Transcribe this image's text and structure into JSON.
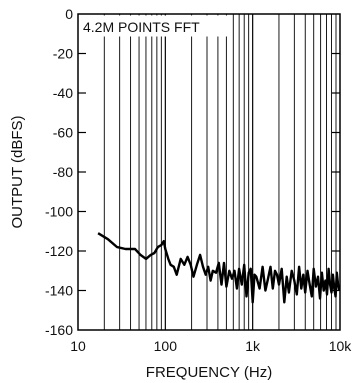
{
  "chart_data": {
    "type": "line",
    "title": "",
    "annotation": "4.2M POINTS FFT",
    "xlabel": "FREQUENCY (Hz)",
    "ylabel": "OUTPUT (dBFS)",
    "xscale": "log",
    "xlim": [
      10,
      10000
    ],
    "ylim": [
      -160,
      0
    ],
    "xticks": [
      10,
      100,
      1000,
      10000
    ],
    "xtick_labels": [
      "10",
      "100",
      "1k",
      "10k"
    ],
    "yticks": [
      0,
      -20,
      -40,
      -60,
      -80,
      -100,
      -120,
      -140,
      -160
    ],
    "ytick_labels": [
      "0",
      "-20",
      "-40",
      "-60",
      "-80",
      "-100",
      "-120",
      "-140",
      "-160"
    ],
    "grid": "vertical",
    "series": [
      {
        "line_color": "#000000",
        "x": [
          17,
          22,
          28,
          35,
          45,
          52,
          60,
          68,
          75,
          82,
          90,
          96,
          100,
          108,
          115,
          125,
          135,
          150,
          165,
          180,
          195,
          210,
          230,
          250,
          270,
          290,
          310,
          330,
          350,
          380,
          410,
          440,
          470,
          500,
          540,
          580,
          620,
          660,
          700,
          750,
          800,
          850,
          900,
          950,
          1000,
          1050,
          1100,
          1200,
          1300,
          1400,
          1500,
          1600,
          1700,
          1800,
          1900,
          2000,
          2150,
          2300,
          2450,
          2600,
          2800,
          3000,
          3200,
          3400,
          3600,
          3800,
          4000,
          4250,
          4500,
          4750,
          5000,
          5300,
          5600,
          5900,
          6200,
          6500,
          6800,
          7100,
          7400,
          7700,
          8000,
          8300,
          8600,
          8900,
          9200,
          9500,
          9800
        ],
        "y": [
          -111,
          -114,
          -118,
          -119,
          -119,
          -122,
          -124,
          -122,
          -121,
          -118,
          -117,
          -115,
          -119,
          -124,
          -127,
          -128,
          -132,
          -124,
          -127,
          -123,
          -127,
          -133,
          -127,
          -122,
          -128,
          -132,
          -128,
          -135,
          -130,
          -131,
          -126,
          -137,
          -126,
          -138,
          -130,
          -134,
          -130,
          -139,
          -129,
          -137,
          -127,
          -143,
          -131,
          -129,
          -146,
          -132,
          -133,
          -139,
          -128,
          -140,
          -134,
          -128,
          -139,
          -130,
          -132,
          -137,
          -129,
          -146,
          -133,
          -141,
          -130,
          -135,
          -142,
          -128,
          -139,
          -132,
          -141,
          -130,
          -137,
          -143,
          -129,
          -138,
          -133,
          -144,
          -131,
          -140,
          -135,
          -142,
          -129,
          -137,
          -141,
          -132,
          -139,
          -143,
          -131,
          -137,
          -140
        ]
      }
    ]
  }
}
